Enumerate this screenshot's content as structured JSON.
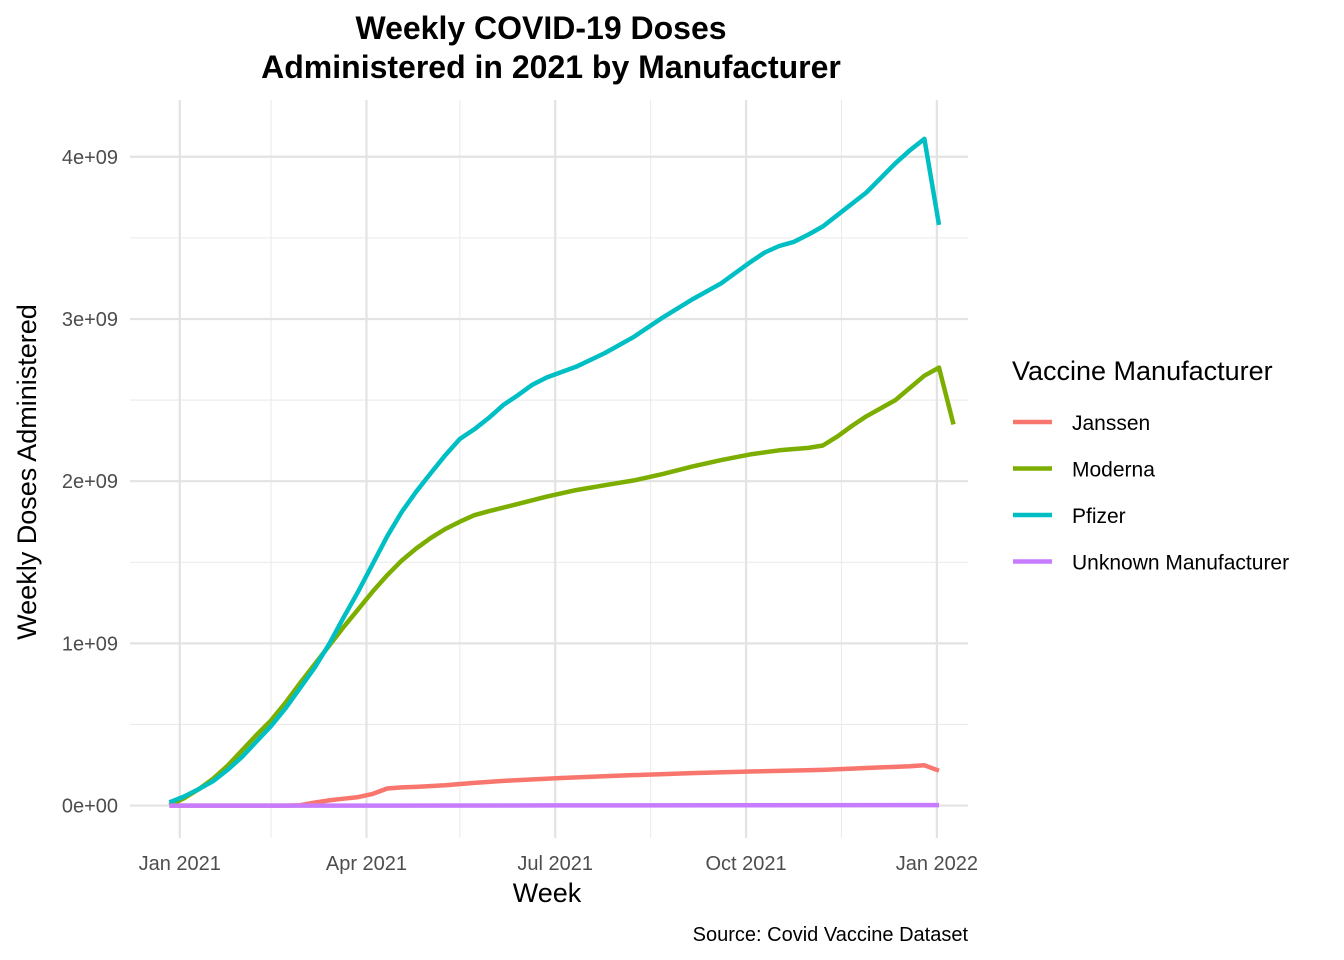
{
  "chart_data": {
    "type": "line",
    "title": [
      "Weekly COVID-19 Doses",
      "Administered in 2021 by Manufacturer"
    ],
    "xlabel": "Week",
    "ylabel": "Weekly Doses Administered",
    "caption": "Source: Covid Vaccine Dataset",
    "legend_title": "Vaccine Manufacturer",
    "legend_position": "right",
    "grid": true,
    "xlim": [
      "2020-12-08",
      "2022-01-16"
    ],
    "ylim": [
      -200000000,
      4350000000
    ],
    "x_ticks": [
      {
        "date": "2021-01-01",
        "label": "Jan 2021"
      },
      {
        "date": "2021-04-01",
        "label": "Apr 2021"
      },
      {
        "date": "2021-07-01",
        "label": "Jul 2021"
      },
      {
        "date": "2021-10-01",
        "label": "Oct 2021"
      },
      {
        "date": "2022-01-01",
        "label": "Jan 2022"
      }
    ],
    "x_minor_ticks": [
      "2021-02-14",
      "2021-05-16",
      "2021-08-16",
      "2021-11-16"
    ],
    "y_ticks": [
      {
        "value": 0,
        "label": "0e+00"
      },
      {
        "value": 1000000000,
        "label": "1e+09"
      },
      {
        "value": 2000000000,
        "label": "2e+09"
      },
      {
        "value": 3000000000,
        "label": "3e+09"
      },
      {
        "value": 4000000000,
        "label": "4e+09"
      }
    ],
    "y_minor_ticks": [
      500000000,
      1500000000,
      2500000000,
      3500000000
    ],
    "series": [
      {
        "name": "Janssen",
        "color": "#F8766D",
        "points": [
          [
            "2020-12-27",
            0
          ],
          [
            "2021-01-03",
            0
          ],
          [
            "2021-01-10",
            0
          ],
          [
            "2021-01-17",
            0
          ],
          [
            "2021-01-24",
            0
          ],
          [
            "2021-01-31",
            0
          ],
          [
            "2021-02-07",
            0
          ],
          [
            "2021-02-14",
            0
          ],
          [
            "2021-02-21",
            0
          ],
          [
            "2021-02-28",
            2000000
          ],
          [
            "2021-03-07",
            18000000
          ],
          [
            "2021-03-14",
            32000000
          ],
          [
            "2021-03-21",
            42000000
          ],
          [
            "2021-03-28",
            52000000
          ],
          [
            "2021-04-04",
            72000000
          ],
          [
            "2021-04-11",
            105000000
          ],
          [
            "2021-04-18",
            112000000
          ],
          [
            "2021-04-25",
            115000000
          ],
          [
            "2021-05-09",
            125000000
          ],
          [
            "2021-05-23",
            140000000
          ],
          [
            "2021-06-06",
            152000000
          ],
          [
            "2021-07-04",
            170000000
          ],
          [
            "2021-08-01",
            185000000
          ],
          [
            "2021-09-05",
            200000000
          ],
          [
            "2021-10-03",
            210000000
          ],
          [
            "2021-11-07",
            220000000
          ],
          [
            "2021-12-05",
            235000000
          ],
          [
            "2021-12-19",
            242000000
          ],
          [
            "2021-12-26",
            248000000
          ],
          [
            "2022-01-02",
            215000000
          ]
        ]
      },
      {
        "name": "Moderna",
        "color": "#7CAE00",
        "points": [
          [
            "2020-12-27",
            2000000
          ],
          [
            "2021-01-03",
            45000000
          ],
          [
            "2021-01-10",
            100000000
          ],
          [
            "2021-01-17",
            165000000
          ],
          [
            "2021-01-24",
            245000000
          ],
          [
            "2021-01-31",
            340000000
          ],
          [
            "2021-02-07",
            435000000
          ],
          [
            "2021-02-14",
            525000000
          ],
          [
            "2021-02-21",
            635000000
          ],
          [
            "2021-02-28",
            755000000
          ],
          [
            "2021-03-07",
            870000000
          ],
          [
            "2021-03-14",
            985000000
          ],
          [
            "2021-03-21",
            1100000000
          ],
          [
            "2021-03-28",
            1210000000
          ],
          [
            "2021-04-04",
            1320000000
          ],
          [
            "2021-04-11",
            1420000000
          ],
          [
            "2021-04-18",
            1510000000
          ],
          [
            "2021-04-25",
            1585000000
          ],
          [
            "2021-05-02",
            1650000000
          ],
          [
            "2021-05-09",
            1705000000
          ],
          [
            "2021-05-16",
            1750000000
          ],
          [
            "2021-05-23",
            1790000000
          ],
          [
            "2021-05-30",
            1815000000
          ],
          [
            "2021-06-13",
            1860000000
          ],
          [
            "2021-06-27",
            1905000000
          ],
          [
            "2021-07-11",
            1945000000
          ],
          [
            "2021-07-25",
            1975000000
          ],
          [
            "2021-08-08",
            2005000000
          ],
          [
            "2021-08-22",
            2045000000
          ],
          [
            "2021-09-05",
            2090000000
          ],
          [
            "2021-09-19",
            2130000000
          ],
          [
            "2021-10-03",
            2165000000
          ],
          [
            "2021-10-17",
            2190000000
          ],
          [
            "2021-10-31",
            2205000000
          ],
          [
            "2021-11-07",
            2220000000
          ],
          [
            "2021-11-14",
            2275000000
          ],
          [
            "2021-11-21",
            2340000000
          ],
          [
            "2021-11-28",
            2400000000
          ],
          [
            "2021-12-12",
            2500000000
          ],
          [
            "2021-12-19",
            2575000000
          ],
          [
            "2021-12-26",
            2650000000
          ],
          [
            "2022-01-02",
            2700000000
          ],
          [
            "2022-01-09",
            2350000000
          ]
        ]
      },
      {
        "name": "Pfizer",
        "color": "#00BFC4",
        "points": [
          [
            "2020-12-27",
            20000000
          ],
          [
            "2021-01-03",
            55000000
          ],
          [
            "2021-01-10",
            100000000
          ],
          [
            "2021-01-17",
            150000000
          ],
          [
            "2021-01-24",
            220000000
          ],
          [
            "2021-01-31",
            300000000
          ],
          [
            "2021-02-07",
            395000000
          ],
          [
            "2021-02-14",
            490000000
          ],
          [
            "2021-02-21",
            600000000
          ],
          [
            "2021-02-28",
            725000000
          ],
          [
            "2021-03-07",
            850000000
          ],
          [
            "2021-03-14",
            995000000
          ],
          [
            "2021-03-21",
            1160000000
          ],
          [
            "2021-03-28",
            1320000000
          ],
          [
            "2021-04-04",
            1490000000
          ],
          [
            "2021-04-11",
            1660000000
          ],
          [
            "2021-04-18",
            1810000000
          ],
          [
            "2021-04-25",
            1935000000
          ],
          [
            "2021-05-02",
            2050000000
          ],
          [
            "2021-05-09",
            2160000000
          ],
          [
            "2021-05-16",
            2260000000
          ],
          [
            "2021-05-23",
            2320000000
          ],
          [
            "2021-05-30",
            2390000000
          ],
          [
            "2021-06-06",
            2470000000
          ],
          [
            "2021-06-13",
            2530000000
          ],
          [
            "2021-06-20",
            2595000000
          ],
          [
            "2021-06-27",
            2640000000
          ],
          [
            "2021-07-11",
            2705000000
          ],
          [
            "2021-07-25",
            2790000000
          ],
          [
            "2021-08-08",
            2890000000
          ],
          [
            "2021-08-22",
            3010000000
          ],
          [
            "2021-09-05",
            3120000000
          ],
          [
            "2021-09-19",
            3220000000
          ],
          [
            "2021-10-03",
            3350000000
          ],
          [
            "2021-10-10",
            3410000000
          ],
          [
            "2021-10-17",
            3450000000
          ],
          [
            "2021-10-24",
            3475000000
          ],
          [
            "2021-10-31",
            3520000000
          ],
          [
            "2021-11-07",
            3570000000
          ],
          [
            "2021-11-14",
            3640000000
          ],
          [
            "2021-11-28",
            3780000000
          ],
          [
            "2021-12-05",
            3870000000
          ],
          [
            "2021-12-12",
            3960000000
          ],
          [
            "2021-12-19",
            4040000000
          ],
          [
            "2021-12-26",
            4110000000
          ],
          [
            "2022-01-02",
            3580000000
          ]
        ]
      },
      {
        "name": "Unknown Manufacturer",
        "color": "#C77CFF",
        "points": [
          [
            "2020-12-27",
            0
          ],
          [
            "2021-04-04",
            0
          ],
          [
            "2021-07-04",
            1000000
          ],
          [
            "2021-10-03",
            2000000
          ],
          [
            "2022-01-02",
            3000000
          ]
        ]
      }
    ]
  }
}
